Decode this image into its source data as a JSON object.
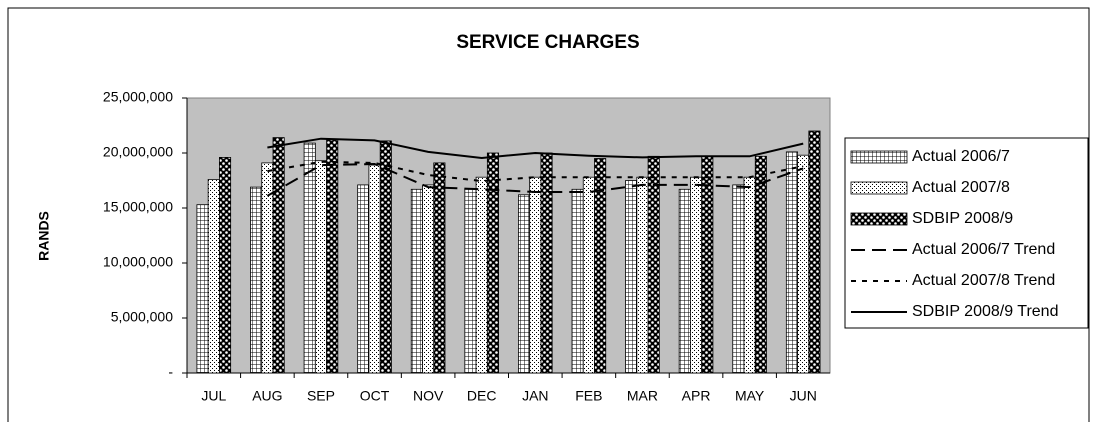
{
  "chart_data": {
    "type": "bar",
    "title": "SERVICE CHARGES",
    "y_label": "RANDS",
    "categories": [
      "JUL",
      "AUG",
      "SEP",
      "OCT",
      "NOV",
      "DEC",
      "JAN",
      "FEB",
      "MAR",
      "APR",
      "MAY",
      "JUN"
    ],
    "ylim": [
      0,
      25000000
    ],
    "yticks": [
      {
        "value": 0,
        "label": "-"
      },
      {
        "value": 5000000,
        "label": "5,000,000"
      },
      {
        "value": 10000000,
        "label": "10,000,000"
      },
      {
        "value": 15000000,
        "label": "15,000,000"
      },
      {
        "value": 20000000,
        "label": "20,000,000"
      },
      {
        "value": 25000000,
        "label": "25,000,000"
      }
    ],
    "grid": false,
    "legend": "right",
    "series": [
      {
        "name": "Actual 2006/7",
        "type": "bar",
        "pattern": "grid",
        "values": [
          15300000,
          16900000,
          20900000,
          17100000,
          16700000,
          16700000,
          16200000,
          16700000,
          17500000,
          16700000,
          17100000,
          20100000
        ]
      },
      {
        "name": "Actual 2007/8",
        "type": "bar",
        "pattern": "dots",
        "values": [
          17600000,
          19100000,
          19300000,
          18900000,
          17100000,
          17800000,
          17800000,
          17800000,
          17800000,
          17800000,
          17800000,
          19800000
        ]
      },
      {
        "name": "SDBIP 2008/9",
        "type": "bar",
        "pattern": "checker",
        "values": [
          19600000,
          21400000,
          21200000,
          21100000,
          19100000,
          20000000,
          20000000,
          19500000,
          19700000,
          19700000,
          19700000,
          22000000
        ]
      },
      {
        "name": "Actual 2006/7 Trend",
        "type": "line",
        "dash": "long",
        "values": [
          null,
          16100000,
          18900000,
          19000000,
          16900000,
          16700000,
          16450000,
          16450000,
          17100000,
          17100000,
          16900000,
          18600000
        ]
      },
      {
        "name": "Actual 2007/8 Trend",
        "type": "line",
        "dash": "short",
        "values": [
          null,
          18350000,
          19200000,
          19100000,
          18000000,
          17450000,
          17800000,
          17800000,
          17800000,
          17800000,
          17800000,
          18800000
        ]
      },
      {
        "name": "SDBIP 2008/9 Trend",
        "type": "line",
        "dash": "solid",
        "values": [
          null,
          20500000,
          21300000,
          21150000,
          20100000,
          19550000,
          20000000,
          19750000,
          19600000,
          19700000,
          19700000,
          20850000
        ]
      }
    ]
  }
}
